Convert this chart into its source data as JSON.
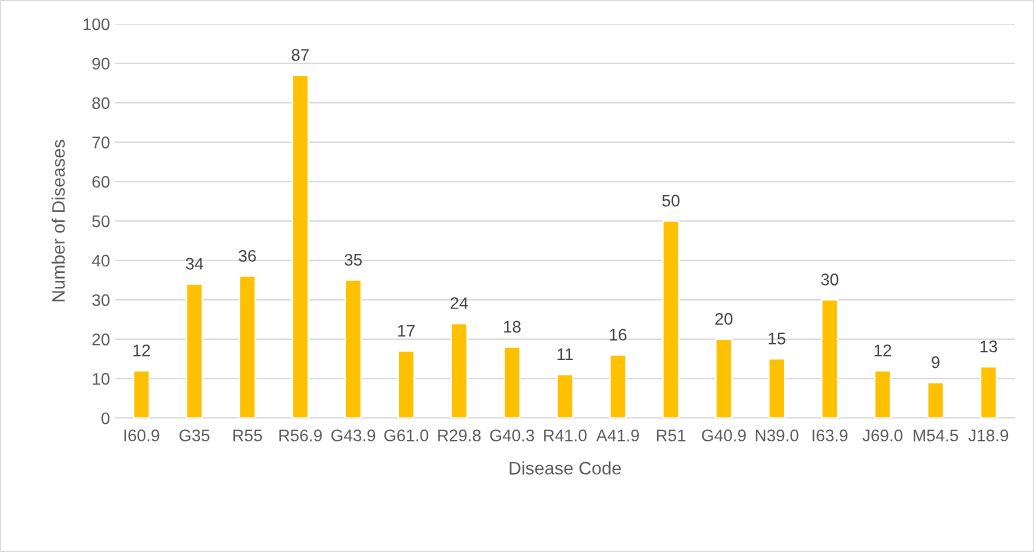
{
  "chart_data": {
    "type": "bar",
    "xlabel": "Disease Code",
    "ylabel": "Number of Diseases",
    "categories": [
      "I60.9",
      "G35",
      "R55",
      "R56.9",
      "G43.9",
      "G61.0",
      "R29.8",
      "G40.3",
      "R41.0",
      "A41.9",
      "R51",
      "G40.9",
      "N39.0",
      "I63.9",
      "J69.0",
      "M54.5",
      "J18.9"
    ],
    "values": [
      12,
      34,
      36,
      87,
      35,
      17,
      24,
      18,
      11,
      16,
      50,
      20,
      15,
      30,
      12,
      9,
      13
    ],
    "color": "#ffc000",
    "ylim": [
      0,
      100
    ],
    "yticks": [
      0,
      10,
      20,
      30,
      40,
      50,
      60,
      70,
      80,
      90,
      100
    ],
    "grid": "y",
    "data_labels": true,
    "legend": false
  }
}
